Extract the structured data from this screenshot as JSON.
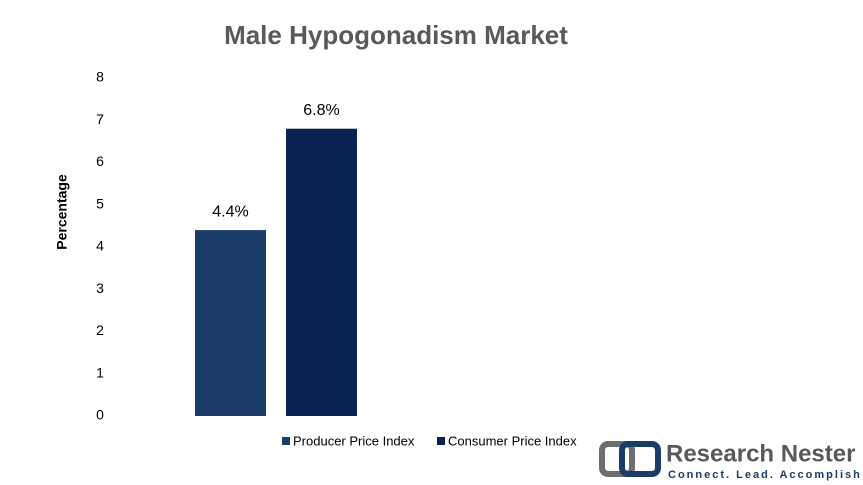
{
  "chart_data": {
    "type": "bar",
    "title": "Male Hypogonadism Market",
    "y_label": "Percentage",
    "categories": [
      null
    ],
    "series": [
      {
        "name": "Producer Price Index",
        "color": "#1b3c66",
        "values": [
          4.4
        ],
        "value_labels": [
          "4.4%"
        ]
      },
      {
        "name": "Consumer Price Index",
        "color": "#0a2352",
        "values": [
          6.8
        ],
        "value_labels": [
          "6.8%"
        ]
      }
    ],
    "ylim": [
      0,
      8
    ],
    "yticks": [
      0,
      1,
      2,
      3,
      4,
      5,
      6,
      7,
      8
    ],
    "grid": false,
    "legend": "bottom"
  },
  "logo": {
    "name": "Research Nester",
    "tagline": "Connect. Lead. Accomplish"
  }
}
